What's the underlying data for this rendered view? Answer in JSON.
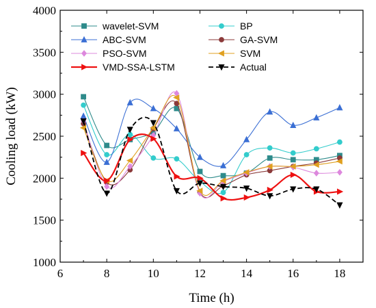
{
  "chart_data": {
    "type": "line",
    "xlabel": "Time (h)",
    "ylabel": "Cooling load (kW)",
    "xlim": [
      6,
      19
    ],
    "ylim": [
      1000,
      4000
    ],
    "xticks": [
      6,
      8,
      10,
      12,
      14,
      16,
      18
    ],
    "yticks": [
      1000,
      1500,
      2000,
      2500,
      3000,
      3500,
      4000
    ],
    "x": [
      7,
      8,
      9,
      10,
      11,
      12,
      13,
      14,
      15,
      16,
      17,
      18
    ],
    "legend_placement": "top-left",
    "series": [
      {
        "name": "wavelet-SVM",
        "color": "#2e8b8b",
        "marker": "square",
        "dashed": false,
        "values": [
          2970,
          2390,
          2460,
          2550,
          2830,
          2080,
          2030,
          2060,
          2240,
          2220,
          2220,
          2270
        ]
      },
      {
        "name": "BP",
        "color": "#33cccc",
        "marker": "circle",
        "dashed": false,
        "values": [
          2870,
          2280,
          2520,
          2240,
          2230,
          1960,
          1830,
          2280,
          2360,
          2300,
          2350,
          2430
        ]
      },
      {
        "name": "ABC-SVM",
        "color": "#3b6fd4",
        "marker": "triangle-up",
        "dashed": false,
        "values": [
          2740,
          2190,
          2900,
          2830,
          2590,
          2250,
          2150,
          2460,
          2790,
          2630,
          2720,
          2840
        ]
      },
      {
        "name": "GA-SVM",
        "color": "#8b3a3a",
        "marker": "circle",
        "dashed": false,
        "values": [
          2650,
          1950,
          2100,
          2590,
          2890,
          1830,
          1910,
          2040,
          2090,
          2140,
          2180,
          2240
        ]
      },
      {
        "name": "PSO-SVM",
        "color": "#dd88dd",
        "marker": "diamond",
        "dashed": false,
        "values": [
          2680,
          1900,
          2140,
          2510,
          3010,
          1820,
          1960,
          2060,
          2140,
          2130,
          2060,
          2070
        ]
      },
      {
        "name": "SVM",
        "color": "#e0a020",
        "marker": "triangle-left",
        "dashed": false,
        "values": [
          2600,
          1970,
          2210,
          2600,
          2960,
          1850,
          1970,
          2070,
          2140,
          2140,
          2160,
          2200
        ]
      },
      {
        "name": "VMD-SSA-LSTM",
        "color": "#ee1111",
        "marker": "triangle-right",
        "dashed": false,
        "values": [
          2300,
          1970,
          2460,
          2470,
          2020,
          2000,
          1760,
          1770,
          1860,
          2040,
          1840,
          1840
        ]
      },
      {
        "name": "Actual",
        "color": "#000000",
        "marker": "triangle-down",
        "dashed": true,
        "values": [
          2680,
          1820,
          2580,
          2660,
          1850,
          1940,
          1900,
          1880,
          1790,
          1870,
          1870,
          1680
        ]
      }
    ]
  }
}
